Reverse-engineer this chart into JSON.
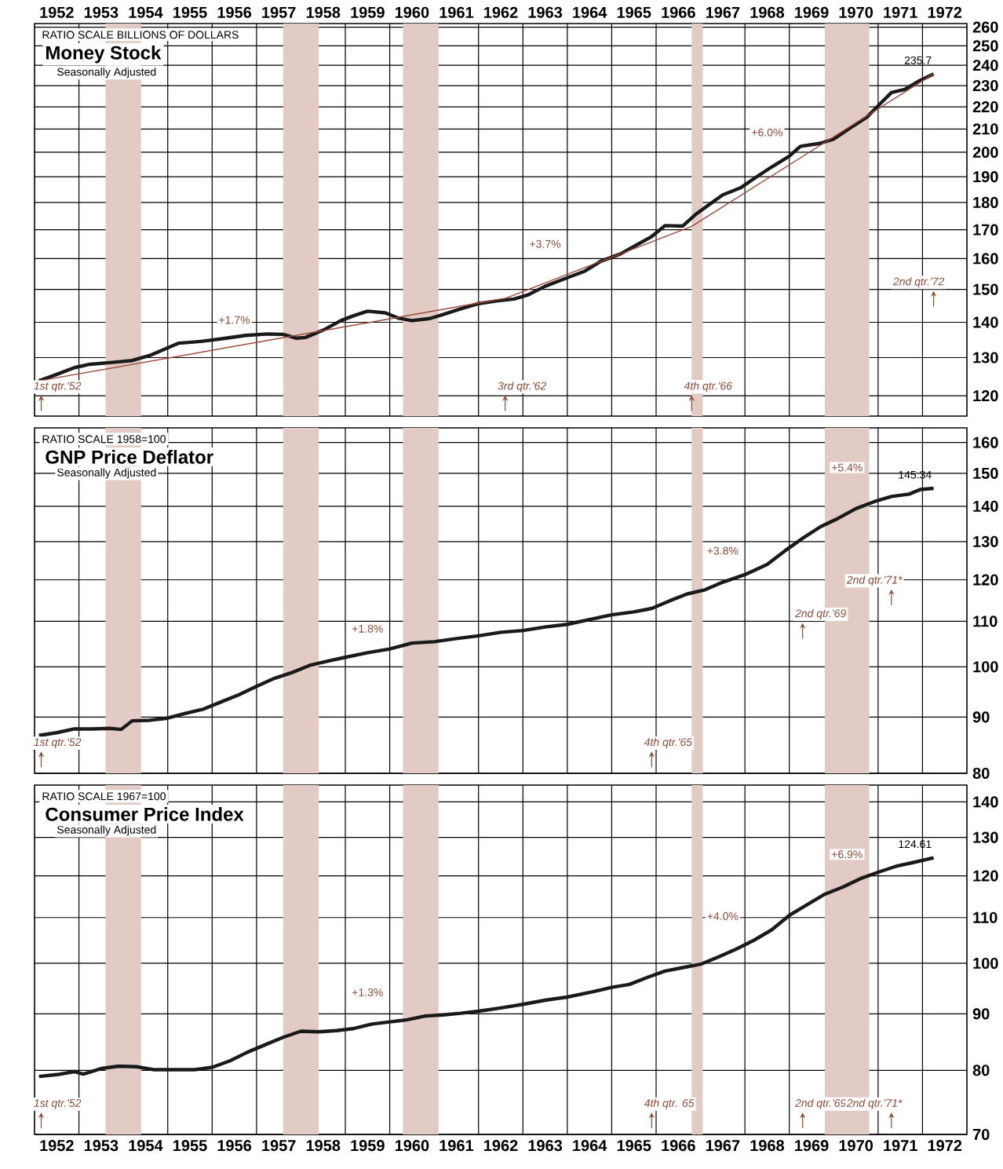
{
  "chart_data": [
    {
      "type": "line",
      "title": "Money Stock",
      "subtitle": "Seasonally Adjusted",
      "ylabel": "RATIO SCALE BILLIONS OF DOLLARS",
      "log": true,
      "grid": true,
      "xlim": [
        1952,
        1973
      ],
      "xticks": [
        {
          "value": 1952.5,
          "label": "1952"
        },
        {
          "value": 1953.5,
          "label": "1953"
        },
        {
          "value": 1954.5,
          "label": "1954"
        },
        {
          "value": 1955.5,
          "label": "1955"
        },
        {
          "value": 1956.5,
          "label": "1956"
        },
        {
          "value": 1957.5,
          "label": "1957"
        },
        {
          "value": 1958.5,
          "label": "1958"
        },
        {
          "value": 1959.5,
          "label": "1959"
        },
        {
          "value": 1960.5,
          "label": "1960"
        },
        {
          "value": 1961.5,
          "label": "1961"
        },
        {
          "value": 1962.5,
          "label": "1962"
        },
        {
          "value": 1963.5,
          "label": "1963"
        },
        {
          "value": 1964.5,
          "label": "1964"
        },
        {
          "value": 1965.5,
          "label": "1965"
        },
        {
          "value": 1966.5,
          "label": "1966"
        },
        {
          "value": 1967.5,
          "label": "1967"
        },
        {
          "value": 1968.5,
          "label": "1968"
        },
        {
          "value": 1969.5,
          "label": "1969"
        },
        {
          "value": 1970.5,
          "label": "1970"
        },
        {
          "value": 1971.5,
          "label": "1971"
        },
        {
          "value": 1972.5,
          "label": "1972"
        },
        {
          "value": 1953,
          "label": null
        },
        {
          "value": 1954,
          "label": null
        },
        {
          "value": 1955,
          "label": null
        },
        {
          "value": 1956,
          "label": null
        },
        {
          "value": 1957,
          "label": null
        },
        {
          "value": 1958,
          "label": null
        },
        {
          "value": 1959,
          "label": null
        },
        {
          "value": 1960,
          "label": null
        },
        {
          "value": 1961,
          "label": null
        },
        {
          "value": 1962,
          "label": null
        },
        {
          "value": 1963,
          "label": null
        },
        {
          "value": 1964,
          "label": null
        },
        {
          "value": 1965,
          "label": null
        },
        {
          "value": 1966,
          "label": null
        },
        {
          "value": 1967,
          "label": null
        },
        {
          "value": 1968,
          "label": null
        },
        {
          "value": 1969,
          "label": null
        },
        {
          "value": 1970,
          "label": null
        },
        {
          "value": 1971,
          "label": null
        },
        {
          "value": 1972,
          "label": null
        }
      ],
      "ylim": [
        115,
        262
      ],
      "yticks": [
        120,
        130,
        140,
        150,
        160,
        170,
        180,
        190,
        200,
        210,
        220,
        230,
        240,
        250,
        260
      ],
      "bands": [
        {
          "axis": "x",
          "from": 1953.6,
          "to": 1954.4,
          "color": "#e2cbc4"
        },
        {
          "axis": "x",
          "from": 1957.6,
          "to": 1958.4,
          "color": "#e2cbc4"
        },
        {
          "axis": "x",
          "from": 1960.3,
          "to": 1961.1,
          "color": "#e2cbc4"
        },
        {
          "axis": "x",
          "from": 1966.8,
          "to": 1967.05,
          "color": "#e2cbc4"
        },
        {
          "axis": "x",
          "from": 1969.8,
          "to": 1970.8,
          "color": "#e2cbc4"
        }
      ],
      "series": [
        {
          "color": "#1a1a1a",
          "x": [
            1952.1,
            1952.5,
            1952.9,
            1953.25,
            1953.75,
            1954.2,
            1954.6,
            1955.25,
            1955.75,
            1956.25,
            1956.75,
            1957.25,
            1957.6,
            1957.9,
            1958.1,
            1958.5,
            1958.9,
            1959.2,
            1959.5,
            1959.9,
            1960.2,
            1960.5,
            1960.9,
            1961.2,
            1961.6,
            1962.0,
            1962.4,
            1962.8,
            1963.1,
            1963.5,
            1964.0,
            1964.4,
            1964.75,
            1965.2,
            1965.6,
            1965.9,
            1966.2,
            1966.6,
            1966.9,
            1967.5,
            1967.9,
            1968.25,
            1968.6,
            1969.0,
            1969.25,
            1969.7,
            1970.0,
            1970.4,
            1970.75,
            1971.0,
            1971.3,
            1971.6,
            1971.9,
            1972.25
          ],
          "values": [
            123.8,
            125.5,
            127.3,
            128.2,
            128.7,
            129.2,
            130.6,
            134.0,
            134.5,
            135.3,
            136.2,
            136.6,
            136.5,
            135.4,
            135.6,
            137.7,
            140.5,
            142.0,
            143.3,
            142.8,
            141.2,
            140.5,
            141.1,
            142.3,
            144.0,
            145.6,
            146.4,
            147.0,
            148.2,
            151.0,
            153.7,
            155.9,
            159.1,
            161.6,
            165.0,
            167.6,
            171.5,
            171.3,
            175.7,
            182.9,
            185.6,
            189.8,
            193.9,
            198.4,
            202.5,
            203.8,
            205.6,
            210.8,
            215.3,
            220.5,
            226.7,
            228.2,
            232.0,
            235.7
          ],
          "value_labels": [
            null,
            null,
            null,
            null,
            null,
            null,
            null,
            null,
            null,
            null,
            null,
            null,
            null,
            null,
            null,
            null,
            null,
            null,
            null,
            null,
            null,
            null,
            null,
            null,
            null,
            null,
            null,
            null,
            null,
            null,
            null,
            null,
            null,
            null,
            null,
            null,
            null,
            null,
            null,
            null,
            null,
            null,
            null,
            null,
            null,
            null,
            null,
            null,
            null,
            null,
            null,
            null,
            null,
            "235.7"
          ]
        },
        {
          "color": "#9a4a38",
          "x": [
            1952.1,
            1962.6,
            1966.8,
            1972.25
          ],
          "values": [
            123.8,
            147.2,
            171.2,
            235.7
          ]
        }
      ],
      "annotations": [
        "+1.7%",
        "+3.7%",
        "+6.0%",
        "1st qtr.'52",
        "3rd qtr.'62",
        "4th qtr.'66",
        "2nd qtr.'72"
      ]
    },
    {
      "type": "line",
      "title": "GNP Price Deflator",
      "subtitle": "Seasonally Adjusted",
      "ylabel": "RATIO SCALE 1958=100",
      "log": true,
      "grid": true,
      "tick_labels": "y",
      "xlim": [
        1952,
        1973
      ],
      "xticks": [
        {
          "value": 1953,
          "label": null
        },
        {
          "value": 1954,
          "label": null
        },
        {
          "value": 1955,
          "label": null
        },
        {
          "value": 1956,
          "label": null
        },
        {
          "value": 1957,
          "label": null
        },
        {
          "value": 1958,
          "label": null
        },
        {
          "value": 1959,
          "label": null
        },
        {
          "value": 1960,
          "label": null
        },
        {
          "value": 1961,
          "label": null
        },
        {
          "value": 1962,
          "label": null
        },
        {
          "value": 1963,
          "label": null
        },
        {
          "value": 1964,
          "label": null
        },
        {
          "value": 1965,
          "label": null
        },
        {
          "value": 1966,
          "label": null
        },
        {
          "value": 1967,
          "label": null
        },
        {
          "value": 1968,
          "label": null
        },
        {
          "value": 1969,
          "label": null
        },
        {
          "value": 1970,
          "label": null
        },
        {
          "value": 1971,
          "label": null
        },
        {
          "value": 1972,
          "label": null
        }
      ],
      "ylim": [
        80,
        165
      ],
      "yticks": [
        80,
        90,
        100,
        110,
        120,
        130,
        140,
        150,
        160
      ],
      "bands": [
        {
          "axis": "x",
          "from": 1953.6,
          "to": 1954.4,
          "color": "#e2cbc4"
        },
        {
          "axis": "x",
          "from": 1957.6,
          "to": 1958.4,
          "color": "#e2cbc4"
        },
        {
          "axis": "x",
          "from": 1960.3,
          "to": 1961.1,
          "color": "#e2cbc4"
        },
        {
          "axis": "x",
          "from": 1966.8,
          "to": 1967.05,
          "color": "#e2cbc4"
        },
        {
          "axis": "x",
          "from": 1969.8,
          "to": 1970.8,
          "color": "#e2cbc4"
        }
      ],
      "series": [
        {
          "color": "#1a1a1a",
          "x": [
            1952.1,
            1952.5,
            1952.9,
            1953.3,
            1953.7,
            1953.95,
            1954.2,
            1954.6,
            1955.0,
            1955.4,
            1955.8,
            1956.2,
            1956.6,
            1957.0,
            1957.4,
            1957.8,
            1958.2,
            1958.6,
            1959.0,
            1959.5,
            1960.0,
            1960.5,
            1961.0,
            1961.5,
            1962.0,
            1962.5,
            1963.0,
            1963.5,
            1964.0,
            1964.5,
            1965.0,
            1965.5,
            1965.9,
            1966.3,
            1966.7,
            1967.1,
            1967.5,
            1968.0,
            1968.5,
            1968.9,
            1969.3,
            1969.7,
            1970.1,
            1970.5,
            1970.9,
            1971.3,
            1971.7,
            1971.95,
            1972.25
          ],
          "values": [
            86.6,
            87.1,
            87.8,
            87.8,
            87.9,
            87.7,
            89.3,
            89.4,
            89.8,
            90.7,
            91.5,
            92.9,
            94.3,
            96.0,
            97.6,
            98.8,
            100.3,
            101.2,
            102.0,
            103.0,
            103.8,
            105.1,
            105.4,
            106.1,
            106.7,
            107.5,
            107.9,
            108.7,
            109.3,
            110.4,
            111.5,
            112.2,
            113.0,
            114.8,
            116.5,
            117.5,
            119.4,
            121.3,
            123.9,
            127.5,
            130.9,
            134.1,
            136.5,
            139.3,
            141.3,
            142.9,
            143.6,
            145.0,
            145.34
          ],
          "value_labels": [
            null,
            null,
            null,
            null,
            null,
            null,
            null,
            null,
            null,
            null,
            null,
            null,
            null,
            null,
            null,
            null,
            null,
            null,
            null,
            null,
            null,
            null,
            null,
            null,
            null,
            null,
            null,
            null,
            null,
            null,
            null,
            null,
            null,
            null,
            null,
            null,
            null,
            null,
            null,
            null,
            null,
            null,
            null,
            null,
            null,
            null,
            null,
            null,
            "145.34"
          ]
        }
      ],
      "annotations": [
        "+1.8%",
        "+3.8%",
        "+5.4%",
        "1st qtr.'52",
        "4th qtr.'65",
        "2nd qtr.'69",
        "2nd qtr.'71*"
      ]
    },
    {
      "type": "line",
      "title": "Consumer Price Index",
      "subtitle": "Seasonally Adjusted",
      "ylabel": "RATIO SCALE 1967=100",
      "log": true,
      "grid": true,
      "xlim": [
        1952,
        1973
      ],
      "xticks": [
        {
          "value": 1952.5,
          "label": "1952"
        },
        {
          "value": 1953.5,
          "label": "1953"
        },
        {
          "value": 1954.5,
          "label": "1954"
        },
        {
          "value": 1955.5,
          "label": "1955"
        },
        {
          "value": 1956.5,
          "label": "1956"
        },
        {
          "value": 1957.5,
          "label": "1957"
        },
        {
          "value": 1958.5,
          "label": "1958"
        },
        {
          "value": 1959.5,
          "label": "1959"
        },
        {
          "value": 1960.5,
          "label": "1960"
        },
        {
          "value": 1961.5,
          "label": "1961"
        },
        {
          "value": 1962.5,
          "label": "1962"
        },
        {
          "value": 1963.5,
          "label": "1963"
        },
        {
          "value": 1964.5,
          "label": "1964"
        },
        {
          "value": 1965.5,
          "label": "1965"
        },
        {
          "value": 1966.5,
          "label": "1966"
        },
        {
          "value": 1967.5,
          "label": "1967"
        },
        {
          "value": 1968.5,
          "label": "1968"
        },
        {
          "value": 1969.5,
          "label": "1969"
        },
        {
          "value": 1970.5,
          "label": "1970"
        },
        {
          "value": 1971.5,
          "label": "1971"
        },
        {
          "value": 1972.5,
          "label": "1972"
        },
        {
          "value": 1953,
          "label": null
        },
        {
          "value": 1954,
          "label": null
        },
        {
          "value": 1955,
          "label": null
        },
        {
          "value": 1956,
          "label": null
        },
        {
          "value": 1957,
          "label": null
        },
        {
          "value": 1958,
          "label": null
        },
        {
          "value": 1959,
          "label": null
        },
        {
          "value": 1960,
          "label": null
        },
        {
          "value": 1961,
          "label": null
        },
        {
          "value": 1962,
          "label": null
        },
        {
          "value": 1963,
          "label": null
        },
        {
          "value": 1964,
          "label": null
        },
        {
          "value": 1965,
          "label": null
        },
        {
          "value": 1966,
          "label": null
        },
        {
          "value": 1967,
          "label": null
        },
        {
          "value": 1968,
          "label": null
        },
        {
          "value": 1969,
          "label": null
        },
        {
          "value": 1970,
          "label": null
        },
        {
          "value": 1971,
          "label": null
        },
        {
          "value": 1972,
          "label": null
        }
      ],
      "ylim": [
        70,
        145
      ],
      "yticks": [
        70,
        80,
        90,
        100,
        110,
        120,
        130,
        140
      ],
      "bands": [
        {
          "axis": "x",
          "from": 1953.6,
          "to": 1954.4,
          "color": "#e2cbc4"
        },
        {
          "axis": "x",
          "from": 1957.6,
          "to": 1958.4,
          "color": "#e2cbc4"
        },
        {
          "axis": "x",
          "from": 1960.3,
          "to": 1961.1,
          "color": "#e2cbc4"
        },
        {
          "axis": "x",
          "from": 1966.8,
          "to": 1967.05,
          "color": "#e2cbc4"
        },
        {
          "axis": "x",
          "from": 1969.8,
          "to": 1970.8,
          "color": "#e2cbc4"
        }
      ],
      "series": [
        {
          "color": "#1a1a1a",
          "x": [
            1952.1,
            1952.5,
            1952.9,
            1953.1,
            1953.5,
            1953.9,
            1954.3,
            1954.7,
            1955.1,
            1955.6,
            1956.0,
            1956.4,
            1956.8,
            1957.2,
            1957.6,
            1958.0,
            1958.4,
            1958.8,
            1959.2,
            1959.6,
            1960.0,
            1960.4,
            1960.8,
            1961.2,
            1961.6,
            1962.0,
            1962.5,
            1963.0,
            1963.5,
            1964.0,
            1964.5,
            1965.0,
            1965.4,
            1965.8,
            1966.2,
            1966.6,
            1967.0,
            1967.4,
            1967.8,
            1968.2,
            1968.6,
            1969.0,
            1969.4,
            1969.8,
            1970.2,
            1970.6,
            1971.0,
            1971.4,
            1971.8,
            1972.25
          ],
          "values": [
            79.0,
            79.3,
            79.8,
            79.4,
            80.3,
            80.7,
            80.6,
            80.1,
            80.1,
            80.1,
            80.5,
            81.6,
            83.1,
            84.4,
            85.7,
            86.8,
            86.7,
            86.9,
            87.3,
            88.1,
            88.5,
            88.9,
            89.6,
            89.8,
            90.1,
            90.5,
            91.1,
            91.8,
            92.6,
            93.2,
            94.1,
            95.1,
            95.7,
            97.1,
            98.4,
            99.1,
            99.8,
            101.3,
            103.0,
            104.9,
            107.2,
            110.5,
            113.0,
            115.5,
            117.2,
            119.3,
            120.9,
            122.4,
            123.4,
            124.61
          ],
          "value_labels": [
            null,
            null,
            null,
            null,
            null,
            null,
            null,
            null,
            null,
            null,
            null,
            null,
            null,
            null,
            null,
            null,
            null,
            null,
            null,
            null,
            null,
            null,
            null,
            null,
            null,
            null,
            null,
            null,
            null,
            null,
            null,
            null,
            null,
            null,
            null,
            null,
            null,
            null,
            null,
            null,
            null,
            null,
            null,
            null,
            null,
            null,
            null,
            null,
            null,
            "124.61"
          ]
        }
      ],
      "annotations": [
        "+1.3%",
        "+4.0%",
        "+6.9%",
        "1st qtr.'52",
        "4th qtr. 65",
        "2nd qtr.'69",
        "2nd qtr.'71*"
      ]
    }
  ]
}
